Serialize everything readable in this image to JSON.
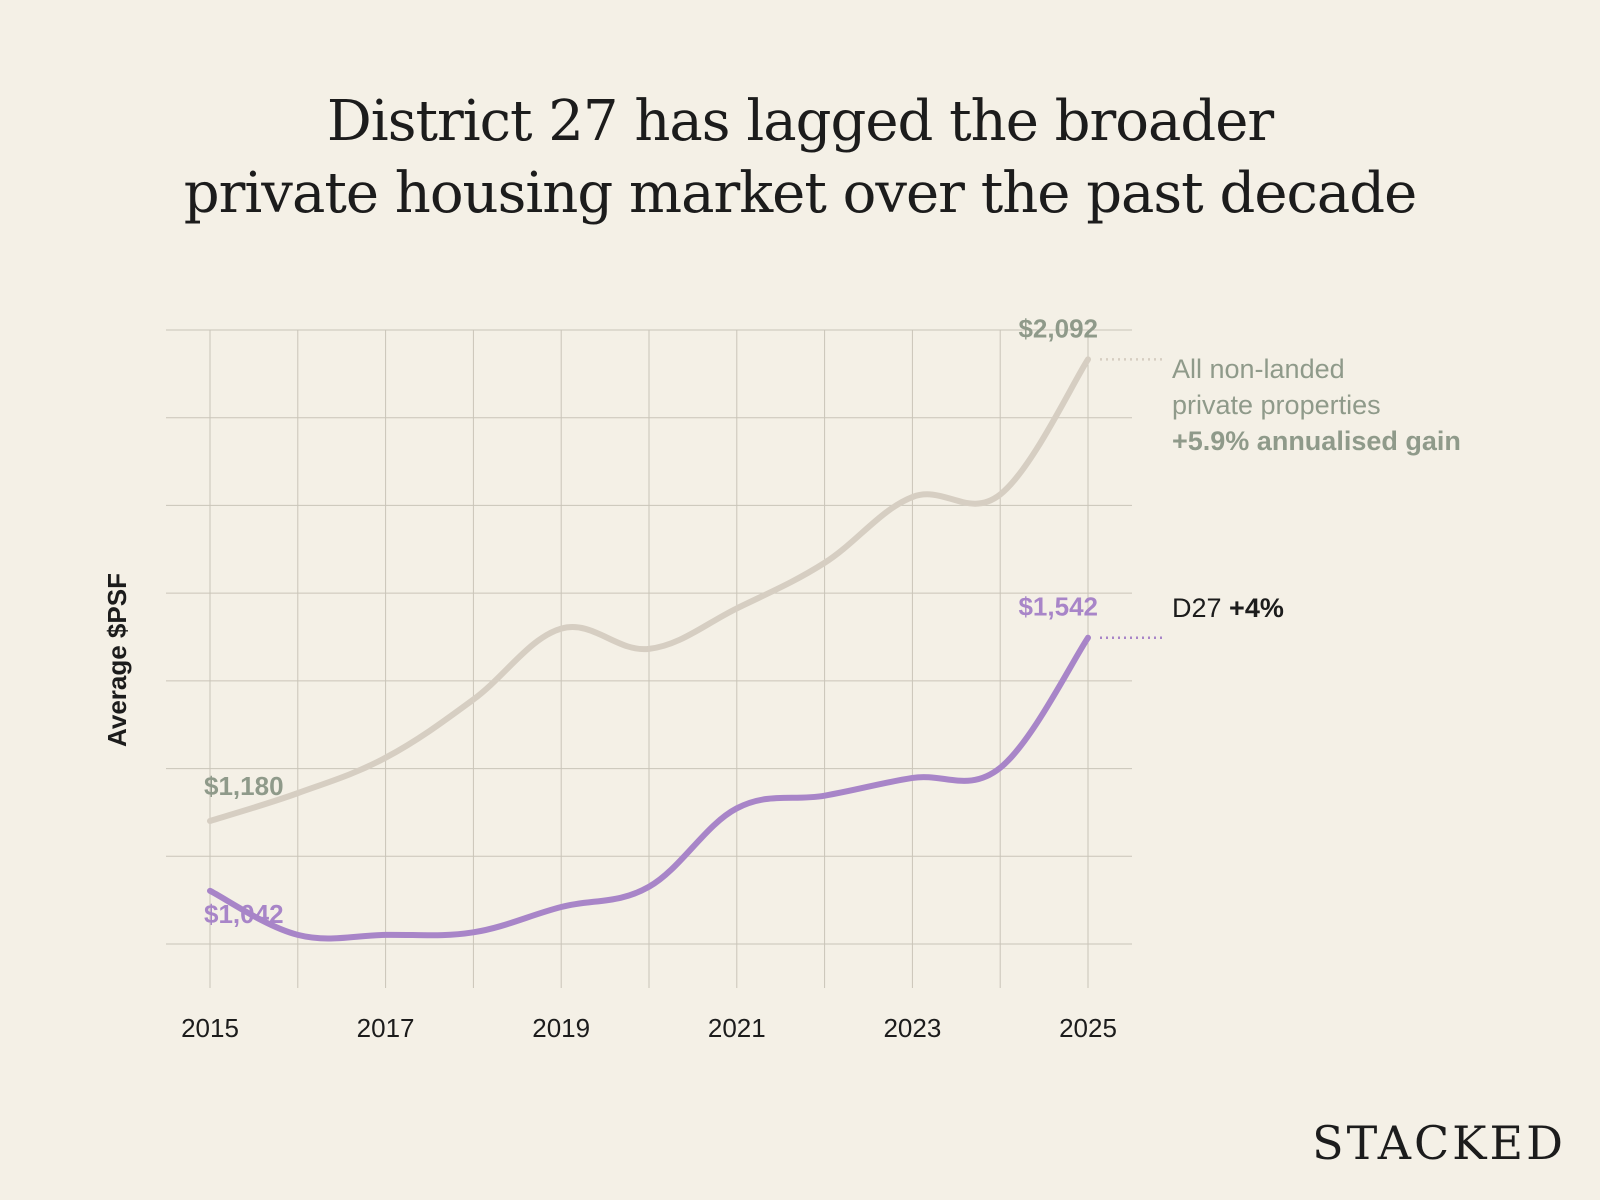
{
  "title_lines": [
    "District 27 has lagged the broader",
    "private housing market over the past decade"
  ],
  "brand": "STACKED",
  "colors": {
    "background": "#f4f0e6",
    "grid": "#c9c4b8",
    "all_line": "#d6cec2",
    "all_text": "#8f9a8a",
    "d27_line": "#a885c8",
    "d27_text": "#a885c8",
    "text": "#1c1c1c"
  },
  "chart_data": {
    "type": "line",
    "title": "District 27 has lagged the broader private housing market over the past decade",
    "ylabel": "Average $PSF",
    "xlabel": "",
    "x": [
      2015,
      2016,
      2017,
      2018,
      2019,
      2020,
      2021,
      2022,
      2023,
      2024,
      2025
    ],
    "x_tick_labels": [
      "2015",
      "2017",
      "2019",
      "2021",
      "2023",
      "2025"
    ],
    "ylim": [
      850,
      2150
    ],
    "grid": true,
    "series": [
      {
        "name": "All non-landed private properties",
        "legend_lines": [
          "All non-landed",
          "private properties"
        ],
        "legend_emphasis": "+5.9% annualised gain",
        "values": [
          1180,
          1235,
          1305,
          1420,
          1560,
          1520,
          1600,
          1690,
          1820,
          1825,
          2092
        ],
        "start_label": "$1,180",
        "end_label": "$2,092"
      },
      {
        "name": "D27",
        "legend_lines": [
          "D27"
        ],
        "legend_emphasis": "+4%",
        "values": [
          1042,
          955,
          955,
          960,
          1010,
          1050,
          1205,
          1230,
          1265,
          1285,
          1542
        ],
        "start_label": "$1,042",
        "end_label": "$1,542"
      }
    ]
  }
}
